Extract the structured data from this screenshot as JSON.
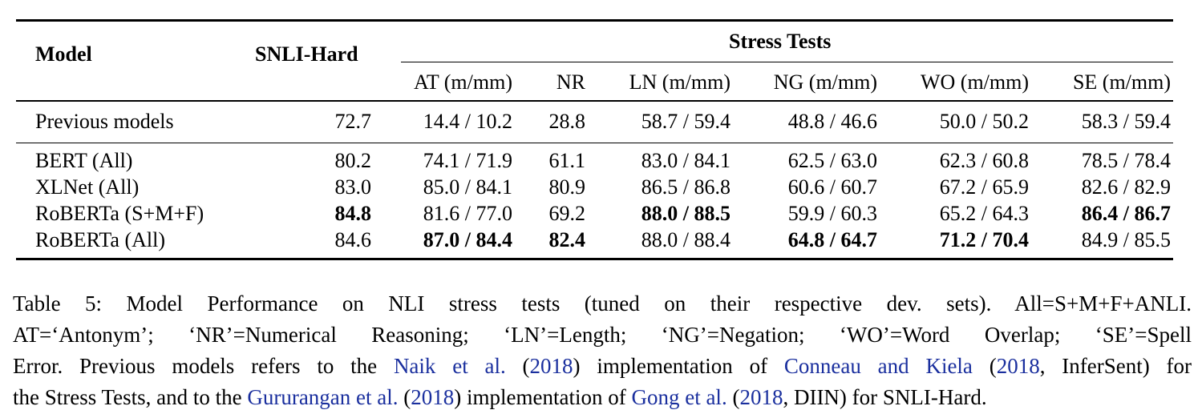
{
  "table": {
    "header": {
      "model": "Model",
      "snli_hard": "SNLI-Hard",
      "group": "Stress Tests",
      "subcols": [
        "AT (m/mm)",
        "NR",
        "LN (m/mm)",
        "NG (m/mm)",
        "WO (m/mm)",
        "SE (m/mm)"
      ]
    },
    "rows": [
      {
        "model": "Previous models",
        "snli": "72.7",
        "cells": [
          "14.4 / 10.2",
          "28.8",
          "58.7 / 59.4",
          "48.8 / 46.6",
          "50.0 / 50.2",
          "58.3 / 59.4"
        ],
        "bold": []
      },
      {
        "model": "BERT (All)",
        "snli": "80.2",
        "cells": [
          "74.1 / 71.9",
          "61.1",
          "83.0 / 84.1",
          "62.5 / 63.0",
          "62.3 / 60.8",
          "78.5 / 78.4"
        ],
        "bold": []
      },
      {
        "model": "XLNet (All)",
        "snli": "83.0",
        "cells": [
          "85.0 / 84.1",
          "80.9",
          "86.5 / 86.8",
          "60.6 / 60.7",
          "67.2 / 65.9",
          "82.6 / 82.9"
        ],
        "bold": []
      },
      {
        "model": "RoBERTa (S+M+F)",
        "snli": "84.8",
        "cells": [
          "81.6 / 77.0",
          "69.2",
          "88.0 / 88.5",
          "59.9 / 60.3",
          "65.2 / 64.3",
          "86.4 / 86.7"
        ],
        "bold": [
          "snli",
          2,
          5
        ]
      },
      {
        "model": "RoBERTa (All)",
        "snli": "84.6",
        "cells": [
          "87.0 / 84.4",
          "82.4",
          "88.0 / 88.4",
          "64.8 / 64.7",
          "71.2 / 70.4",
          "84.9 / 85.5"
        ],
        "bold": [
          0,
          1,
          3,
          4
        ]
      }
    ]
  },
  "caption": {
    "line1": "Table 5: Model Performance on NLI stress tests (tuned on their respective dev. sets). All=S+M+F+ANLI.",
    "line2": "AT=‘Antonym’; ‘NR’=Numerical Reasoning; ‘LN’=Length; ‘NG’=Negation; ‘WO’=Word Overlap; ‘SE’=Spell",
    "line3_a": "Error. Previous models refers to the ",
    "cite_naik": "Naik et al.",
    "line3_b": " (",
    "cite_naik_year": "2018",
    "line3_c": ") implementation of ",
    "cite_conneau": "Conneau and Kiela",
    "line3_d": " (",
    "cite_conneau_year": "2018",
    "line3_e": ", InferSent) for",
    "line4_a": "the Stress Tests, and to the ",
    "cite_gururangan": "Gururangan et al.",
    "line4_b": " (",
    "cite_gururangan_year": "2018",
    "line4_c": ") implementation of ",
    "cite_gong": "Gong et al.",
    "line4_d": " (",
    "cite_gong_year": "2018",
    "line4_e": ", DIIN) for SNLI-Hard."
  }
}
